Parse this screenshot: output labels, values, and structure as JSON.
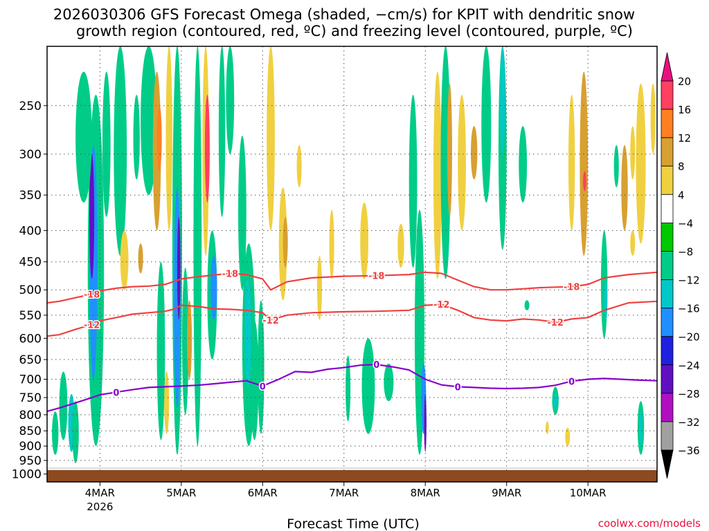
{
  "chart_data": {
    "type": "heatmap",
    "title_line1": "2026030306 GFS Forecast Omega (shaded, −cm/s) for KPIT with dendritic snow",
    "title_line2": "growth region (contoured, red, ºC) and freezing level (contoured, purple, ºC)",
    "xlabel": "Forecast Time (UTC)",
    "ylabel": "",
    "credit": "coolwx.com/models",
    "x_ticks": [
      "4MAR",
      "5MAR",
      "6MAR",
      "7MAR",
      "8MAR",
      "9MAR",
      "10MAR"
    ],
    "x_year_label": "2026",
    "x_range_days": [
      -0.65,
      6.85
    ],
    "y_ticks": [
      250,
      300,
      350,
      400,
      450,
      500,
      550,
      600,
      650,
      700,
      750,
      800,
      850,
      900,
      950,
      1000
    ],
    "y_range_hPa": [
      200,
      1030
    ],
    "y_log_scale": true,
    "grid": true,
    "colorbar": {
      "labels": [
        "20",
        "16",
        "12",
        "8",
        "4",
        "−4",
        "−8",
        "−12",
        "−16",
        "−20",
        "−24",
        "−28",
        "−32",
        "−36"
      ],
      "colors": [
        "#ff4060",
        "#ff8020",
        "#d8a030",
        "#f0d040",
        "#ffffff",
        "#00c800",
        "#00cc88",
        "#00c8c8",
        "#2090ff",
        "#2020e0",
        "#6010c0",
        "#b010c0",
        "#a0a0a0"
      ],
      "over_color": "#e81080",
      "under_color": "#000000"
    },
    "colors": {
      "ground": "#8b4a20",
      "dgz_contour": "#f04040",
      "freezing_contour": "#8800cc"
    },
    "contours": {
      "dgz_minus12": {
        "label": "-12",
        "x": [
          -0.65,
          -0.5,
          -0.3,
          -0.1,
          0.0,
          0.2,
          0.4,
          0.6,
          0.8,
          0.9,
          1.0,
          1.2,
          1.4,
          1.6,
          1.8,
          2.0,
          2.1,
          2.3,
          2.6,
          3.0,
          3.4,
          3.8,
          4.0,
          4.2,
          4.4,
          4.6,
          4.8,
          5.0,
          5.2,
          5.4,
          5.6,
          5.8,
          6.0,
          6.2,
          6.5,
          6.85
        ],
        "p": [
          595,
          592,
          580,
          570,
          562,
          555,
          548,
          545,
          542,
          538,
          530,
          532,
          537,
          538,
          540,
          545,
          560,
          550,
          545,
          543,
          542,
          540,
          530,
          528,
          540,
          555,
          560,
          562,
          558,
          560,
          565,
          558,
          555,
          540,
          525,
          522
        ]
      },
      "dgz_minus18": {
        "label": "-18",
        "x": [
          -0.65,
          -0.5,
          -0.3,
          -0.1,
          0.0,
          0.2,
          0.4,
          0.6,
          0.8,
          0.9,
          1.0,
          1.2,
          1.4,
          1.6,
          1.8,
          2.0,
          2.1,
          2.3,
          2.6,
          3.0,
          3.4,
          3.8,
          4.0,
          4.2,
          4.4,
          4.6,
          4.8,
          5.0,
          5.2,
          5.4,
          5.6,
          5.8,
          6.0,
          6.2,
          6.5,
          6.85
        ],
        "p": [
          525,
          522,
          515,
          508,
          502,
          497,
          494,
          493,
          490,
          485,
          480,
          476,
          473,
          470,
          472,
          480,
          500,
          485,
          478,
          475,
          474,
          472,
          468,
          470,
          482,
          494,
          500,
          500,
          498,
          496,
          495,
          494,
          490,
          478,
          472,
          468
        ]
      },
      "freezing_0": {
        "label": "0",
        "x": [
          -0.65,
          -0.5,
          -0.3,
          -0.1,
          0.0,
          0.2,
          0.4,
          0.6,
          0.8,
          1.0,
          1.2,
          1.4,
          1.6,
          1.8,
          2.0,
          2.2,
          2.4,
          2.6,
          2.8,
          3.0,
          3.2,
          3.4,
          3.6,
          3.8,
          4.0,
          4.2,
          4.4,
          4.6,
          4.8,
          5.0,
          5.2,
          5.4,
          5.6,
          5.8,
          6.0,
          6.2,
          6.4,
          6.6,
          6.85
        ],
        "p": [
          790,
          780,
          765,
          750,
          742,
          735,
          728,
          722,
          720,
          718,
          716,
          712,
          708,
          704,
          718,
          700,
          680,
          682,
          674,
          670,
          664,
          662,
          668,
          676,
          700,
          715,
          720,
          722,
          724,
          725,
          724,
          722,
          716,
          705,
          700,
          698,
          700,
          702,
          704
        ]
      }
    },
    "shading_blobs": [
      {
        "x": -0.05,
        "p1": 240,
        "p2": 900,
        "w": 0.1,
        "v": -8
      },
      {
        "x": -0.08,
        "p1": 290,
        "p2": 700,
        "w": 0.05,
        "v": -16
      },
      {
        "x": -0.1,
        "p1": 300,
        "p2": 480,
        "w": 0.03,
        "v": -24
      },
      {
        "x": -0.2,
        "p1": 220,
        "p2": 360,
        "w": 0.1,
        "v": -8
      },
      {
        "x": -0.45,
        "p1": 680,
        "p2": 880,
        "w": 0.05,
        "v": -8
      },
      {
        "x": -0.35,
        "p1": 740,
        "p2": 920,
        "w": 0.04,
        "v": -12
      },
      {
        "x": -0.3,
        "p1": 760,
        "p2": 960,
        "w": 0.04,
        "v": -8
      },
      {
        "x": -0.55,
        "p1": 790,
        "p2": 930,
        "w": 0.04,
        "v": -8
      },
      {
        "x": 0.08,
        "p1": 220,
        "p2": 380,
        "w": 0.05,
        "v": -8
      },
      {
        "x": 0.25,
        "p1": 200,
        "p2": 440,
        "w": 0.08,
        "v": -8
      },
      {
        "x": 0.3,
        "p1": 400,
        "p2": 500,
        "w": 0.05,
        "v": 6
      },
      {
        "x": 0.45,
        "p1": 240,
        "p2": 330,
        "w": 0.04,
        "v": -8
      },
      {
        "x": 0.5,
        "p1": 420,
        "p2": 470,
        "w": 0.03,
        "v": 8
      },
      {
        "x": 0.6,
        "p1": 200,
        "p2": 350,
        "w": 0.1,
        "v": -8
      },
      {
        "x": 0.7,
        "p1": 220,
        "p2": 400,
        "w": 0.05,
        "v": 8
      },
      {
        "x": 0.73,
        "p1": 250,
        "p2": 320,
        "w": 0.03,
        "v": 14
      },
      {
        "x": 0.85,
        "p1": 200,
        "p2": 400,
        "w": 0.04,
        "v": 6
      },
      {
        "x": 0.75,
        "p1": 450,
        "p2": 880,
        "w": 0.05,
        "v": -8
      },
      {
        "x": 0.82,
        "p1": 680,
        "p2": 860,
        "w": 0.03,
        "v": 6
      },
      {
        "x": 0.95,
        "p1": 200,
        "p2": 930,
        "w": 0.06,
        "v": -8
      },
      {
        "x": 0.95,
        "p1": 340,
        "p2": 780,
        "w": 0.04,
        "v": -16
      },
      {
        "x": 0.97,
        "p1": 380,
        "p2": 560,
        "w": 0.02,
        "v": -24
      },
      {
        "x": 1.05,
        "p1": 460,
        "p2": 800,
        "w": 0.04,
        "v": -8
      },
      {
        "x": 1.1,
        "p1": 520,
        "p2": 700,
        "w": 0.03,
        "v": 8
      },
      {
        "x": 1.2,
        "p1": 200,
        "p2": 900,
        "w": 0.05,
        "v": -8
      },
      {
        "x": 1.3,
        "p1": 200,
        "p2": 440,
        "w": 0.04,
        "v": 6
      },
      {
        "x": 1.32,
        "p1": 240,
        "p2": 360,
        "w": 0.03,
        "v": 16
      },
      {
        "x": 1.38,
        "p1": 400,
        "p2": 650,
        "w": 0.06,
        "v": -8
      },
      {
        "x": 1.4,
        "p1": 440,
        "p2": 560,
        "w": 0.04,
        "v": -16
      },
      {
        "x": 1.5,
        "p1": 200,
        "p2": 380,
        "w": 0.04,
        "v": -8
      },
      {
        "x": 1.6,
        "p1": 200,
        "p2": 300,
        "w": 0.05,
        "v": -8
      },
      {
        "x": 1.75,
        "p1": 280,
        "p2": 500,
        "w": 0.05,
        "v": -8
      },
      {
        "x": 1.83,
        "p1": 420,
        "p2": 900,
        "w": 0.08,
        "v": -8
      },
      {
        "x": 1.82,
        "p1": 480,
        "p2": 720,
        "w": 0.04,
        "v": -12
      },
      {
        "x": 1.9,
        "p1": 560,
        "p2": 880,
        "w": 0.05,
        "v": -8
      },
      {
        "x": 1.98,
        "p1": 520,
        "p2": 860,
        "w": 0.04,
        "v": -8
      },
      {
        "x": 2.1,
        "p1": 200,
        "p2": 400,
        "w": 0.05,
        "v": 4
      },
      {
        "x": 2.25,
        "p1": 340,
        "p2": 520,
        "w": 0.05,
        "v": 6
      },
      {
        "x": 2.28,
        "p1": 380,
        "p2": 460,
        "w": 0.03,
        "v": 10
      },
      {
        "x": 2.45,
        "p1": 290,
        "p2": 340,
        "w": 0.03,
        "v": 6
      },
      {
        "x": 2.7,
        "p1": 440,
        "p2": 560,
        "w": 0.03,
        "v": 6
      },
      {
        "x": 2.85,
        "p1": 370,
        "p2": 480,
        "w": 0.03,
        "v": 4
      },
      {
        "x": 3.05,
        "p1": 640,
        "p2": 820,
        "w": 0.03,
        "v": -8
      },
      {
        "x": 3.25,
        "p1": 360,
        "p2": 480,
        "w": 0.05,
        "v": 6
      },
      {
        "x": 3.3,
        "p1": 600,
        "p2": 860,
        "w": 0.08,
        "v": -8
      },
      {
        "x": 3.55,
        "p1": 660,
        "p2": 760,
        "w": 0.06,
        "v": -8
      },
      {
        "x": 3.7,
        "p1": 390,
        "p2": 460,
        "w": 0.04,
        "v": 6
      },
      {
        "x": 3.85,
        "p1": 240,
        "p2": 460,
        "w": 0.05,
        "v": -8
      },
      {
        "x": 3.93,
        "p1": 370,
        "p2": 930,
        "w": 0.06,
        "v": -8
      },
      {
        "x": 3.98,
        "p1": 660,
        "p2": 860,
        "w": 0.03,
        "v": -16
      },
      {
        "x": 4.0,
        "p1": 740,
        "p2": 920,
        "w": 0.015,
        "v": -24
      },
      {
        "x": 4.15,
        "p1": 220,
        "p2": 480,
        "w": 0.05,
        "v": 6
      },
      {
        "x": 4.25,
        "p1": 200,
        "p2": 480,
        "w": 0.06,
        "v": -8
      },
      {
        "x": 4.3,
        "p1": 230,
        "p2": 380,
        "w": 0.03,
        "v": 8
      },
      {
        "x": 4.45,
        "p1": 240,
        "p2": 400,
        "w": 0.05,
        "v": 6
      },
      {
        "x": 4.6,
        "p1": 270,
        "p2": 330,
        "w": 0.04,
        "v": 8
      },
      {
        "x": 4.75,
        "p1": 200,
        "p2": 360,
        "w": 0.06,
        "v": -8
      },
      {
        "x": 4.95,
        "p1": 200,
        "p2": 430,
        "w": 0.05,
        "v": -8
      },
      {
        "x": 4.95,
        "p1": 200,
        "p2": 300,
        "w": 0.03,
        "v": -12
      },
      {
        "x": 5.2,
        "p1": 270,
        "p2": 360,
        "w": 0.05,
        "v": -8
      },
      {
        "x": 5.25,
        "p1": 520,
        "p2": 540,
        "w": 0.03,
        "v": -8
      },
      {
        "x": 5.6,
        "p1": 720,
        "p2": 800,
        "w": 0.04,
        "v": -8
      },
      {
        "x": 5.6,
        "p1": 740,
        "p2": 780,
        "w": 0.02,
        "v": -12
      },
      {
        "x": 5.8,
        "p1": 240,
        "p2": 400,
        "w": 0.04,
        "v": 6
      },
      {
        "x": 5.95,
        "p1": 220,
        "p2": 440,
        "w": 0.05,
        "v": 8
      },
      {
        "x": 5.96,
        "p1": 320,
        "p2": 345,
        "w": 0.02,
        "v": 16
      },
      {
        "x": 6.2,
        "p1": 400,
        "p2": 600,
        "w": 0.04,
        "v": -8
      },
      {
        "x": 6.22,
        "p1": 480,
        "p2": 560,
        "w": 0.02,
        "v": -12
      },
      {
        "x": 6.35,
        "p1": 290,
        "p2": 340,
        "w": 0.03,
        "v": -8
      },
      {
        "x": 6.45,
        "p1": 290,
        "p2": 400,
        "w": 0.04,
        "v": 8
      },
      {
        "x": 6.55,
        "p1": 270,
        "p2": 330,
        "w": 0.03,
        "v": 4
      },
      {
        "x": 6.65,
        "p1": 230,
        "p2": 420,
        "w": 0.06,
        "v": 6
      },
      {
        "x": 6.8,
        "p1": 230,
        "p2": 300,
        "w": 0.03,
        "v": 4
      },
      {
        "x": 6.65,
        "p1": 760,
        "p2": 930,
        "w": 0.04,
        "v": -8
      },
      {
        "x": 6.65,
        "p1": 790,
        "p2": 900,
        "w": 0.02,
        "v": -12
      },
      {
        "x": 6.55,
        "p1": 400,
        "p2": 440,
        "w": 0.03,
        "v": 4
      },
      {
        "x": 5.5,
        "p1": 820,
        "p2": 860,
        "w": 0.02,
        "v": 6
      },
      {
        "x": 5.75,
        "p1": 840,
        "p2": 900,
        "w": 0.03,
        "v": 6
      }
    ]
  }
}
